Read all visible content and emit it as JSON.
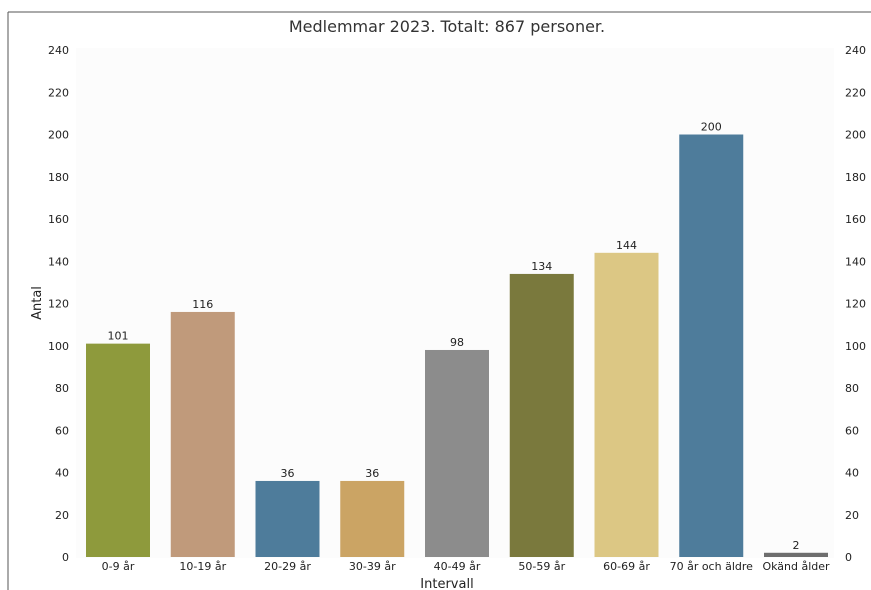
{
  "chart_data": {
    "type": "bar",
    "title": "Medlemmar 2023. Totalt: 867 personer.",
    "xlabel": "Intervall",
    "ylabel": "Antal",
    "ylim": [
      0,
      240
    ],
    "yticks": [
      0,
      20,
      40,
      60,
      80,
      100,
      120,
      140,
      160,
      180,
      200,
      220,
      240
    ],
    "y_axis_sides": [
      "left",
      "right"
    ],
    "grid": false,
    "categories": [
      "0-9 år",
      "10-19 år",
      "20-29 år",
      "30-39 år",
      "40-49 år",
      "50-59 år",
      "60-69 år",
      "70 år och äldre",
      "Okänd ålder"
    ],
    "values": [
      101,
      116,
      36,
      36,
      98,
      134,
      144,
      200,
      2
    ],
    "data_labels": [
      "101",
      "116",
      "36",
      "36",
      "98",
      "134",
      "144",
      "200",
      "2"
    ],
    "colors": [
      "#8e9a3c",
      "#c09a7b",
      "#4e7c9b",
      "#cba464",
      "#8c8c8c",
      "#7a793d",
      "#dcc784",
      "#4e7c9b",
      "#6e6e6e"
    ]
  }
}
